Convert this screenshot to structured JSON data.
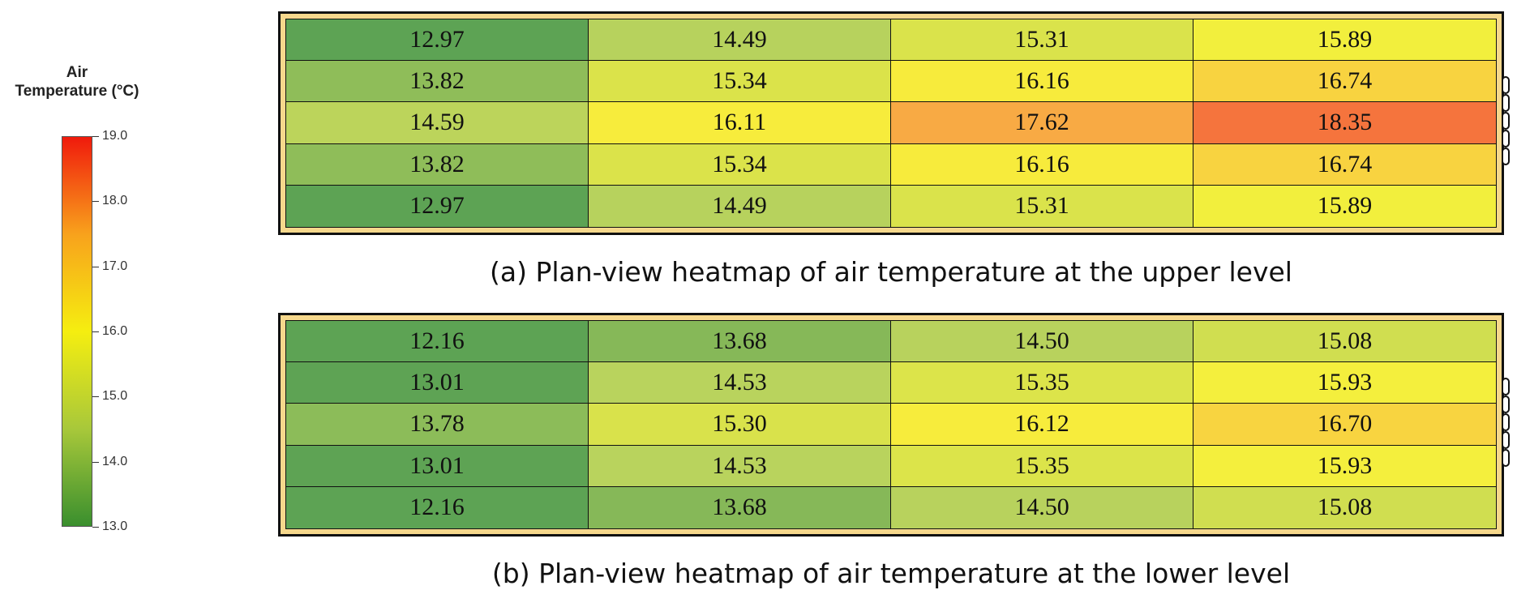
{
  "colorbar": {
    "title_line1": "Air",
    "title_line2": "Temperature (°C)",
    "min": 13.0,
    "max": 19.0,
    "ticks": [
      "19.0",
      "18.0",
      "17.0",
      "16.0",
      "15.0",
      "14.0",
      "13.0"
    ],
    "colors": [
      "#3a8f2e",
      "#a8c83a",
      "#f5ee10",
      "#f8a21c",
      "#f01a0c"
    ]
  },
  "chart_data": [
    {
      "type": "heatmap",
      "title": "(a) Plan-view heatmap of air temperature at the upper level",
      "values": [
        [
          "12.97",
          "14.49",
          "15.31",
          "15.89"
        ],
        [
          "13.82",
          "15.34",
          "16.16",
          "16.74"
        ],
        [
          "14.59",
          "16.11",
          "17.62",
          "18.35"
        ],
        [
          "13.82",
          "15.34",
          "16.16",
          "16.74"
        ],
        [
          "12.97",
          "14.49",
          "15.31",
          "15.89"
        ]
      ]
    },
    {
      "type": "heatmap",
      "title": "(b) Plan-view heatmap of air temperature at the lower level",
      "values": [
        [
          "12.16",
          "13.68",
          "14.50",
          "15.08"
        ],
        [
          "13.01",
          "14.53",
          "15.35",
          "15.93"
        ],
        [
          "13.78",
          "15.30",
          "16.12",
          "16.70"
        ],
        [
          "13.01",
          "14.53",
          "15.35",
          "15.93"
        ],
        [
          "12.16",
          "13.68",
          "14.50",
          "15.08"
        ]
      ]
    }
  ]
}
